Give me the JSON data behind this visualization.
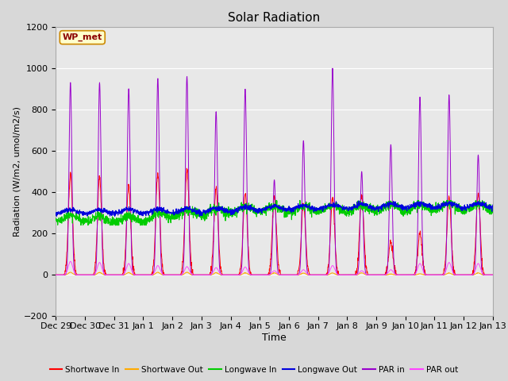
{
  "title": "Solar Radiation",
  "xlabel": "Time",
  "ylabel": "Radiation (W/m2, umol/m2/s)",
  "ylim": [
    -200,
    1200
  ],
  "yticks": [
    -200,
    0,
    200,
    400,
    600,
    800,
    1000,
    1200
  ],
  "fig_bg_color": "#d8d8d8",
  "plot_bg_color": "#e8e8e8",
  "annotation_text": "WP_met",
  "annotation_bg": "#ffffcc",
  "annotation_border": "#cc8800",
  "legend": [
    {
      "label": "Shortwave In",
      "color": "#ff0000"
    },
    {
      "label": "Shortwave Out",
      "color": "#ffaa00"
    },
    {
      "label": "Longwave In",
      "color": "#00cc00"
    },
    {
      "label": "Longwave Out",
      "color": "#0000dd"
    },
    {
      "label": "PAR in",
      "color": "#9900cc"
    },
    {
      "label": "PAR out",
      "color": "#ff44ff"
    }
  ],
  "x_tick_labels": [
    "Dec 29",
    "Dec 30",
    "Dec 31",
    "Jan 1",
    "Jan 2",
    "Jan 3",
    "Jan 4",
    "Jan 5",
    "Jan 6",
    "Jan 7",
    "Jan 8",
    "Jan 9",
    "Jan 10",
    "Jan 11",
    "Jan 12",
    "Jan 13"
  ],
  "n_days": 15
}
